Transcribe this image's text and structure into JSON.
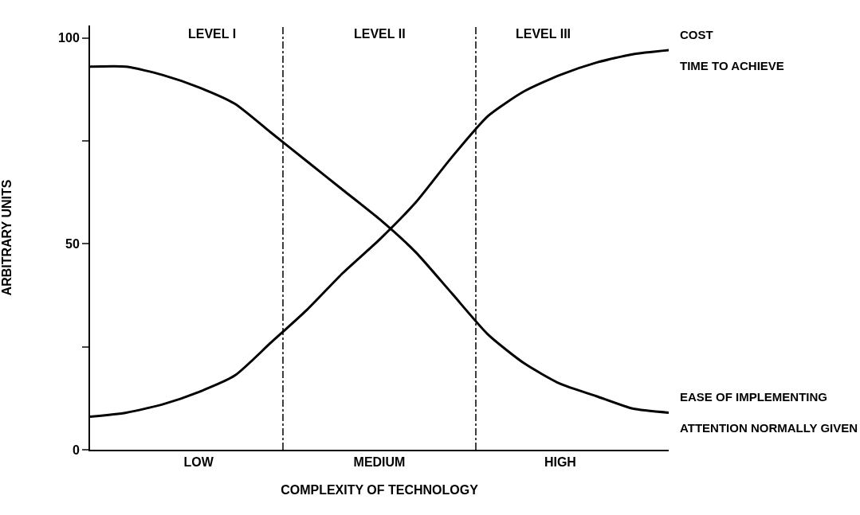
{
  "chart_data": {
    "type": "line",
    "xlabel": "COMPLEXITY OF TECHNOLOGY",
    "ylabel": "ARBITRARY UNITS",
    "categories": [
      null,
      null,
      null,
      "LOW",
      null,
      null,
      null,
      null,
      "MEDIUM",
      null,
      null,
      null,
      null,
      "HIGH",
      null,
      null,
      null
    ],
    "ylim": [
      0,
      103
    ],
    "yticks": [
      0,
      {
        "value": 25,
        "label": null
      },
      50,
      {
        "value": 75,
        "label": null
      },
      100
    ],
    "series": [
      {
        "name": "COST\nTIME TO ACHIEVE",
        "color": "#000000",
        "values": [
          8,
          9,
          11,
          14,
          18,
          26,
          34,
          43,
          51,
          60,
          71,
          81,
          87,
          91,
          94,
          96,
          97
        ]
      },
      {
        "name": "EASE OF IMPLEMENTING\nATTENTION NORMALLY GIVEN",
        "color": "#000000",
        "values": [
          93,
          93,
          91,
          88,
          84,
          77,
          70,
          63,
          56,
          48,
          38,
          28,
          21,
          16,
          13,
          10,
          9
        ]
      }
    ],
    "annotations": [
      "LEVEL I",
      "LEVEL II",
      "LEVEL III"
    ],
    "grid": false,
    "legend": false,
    "marker": "none",
    "line_style": "solid"
  }
}
